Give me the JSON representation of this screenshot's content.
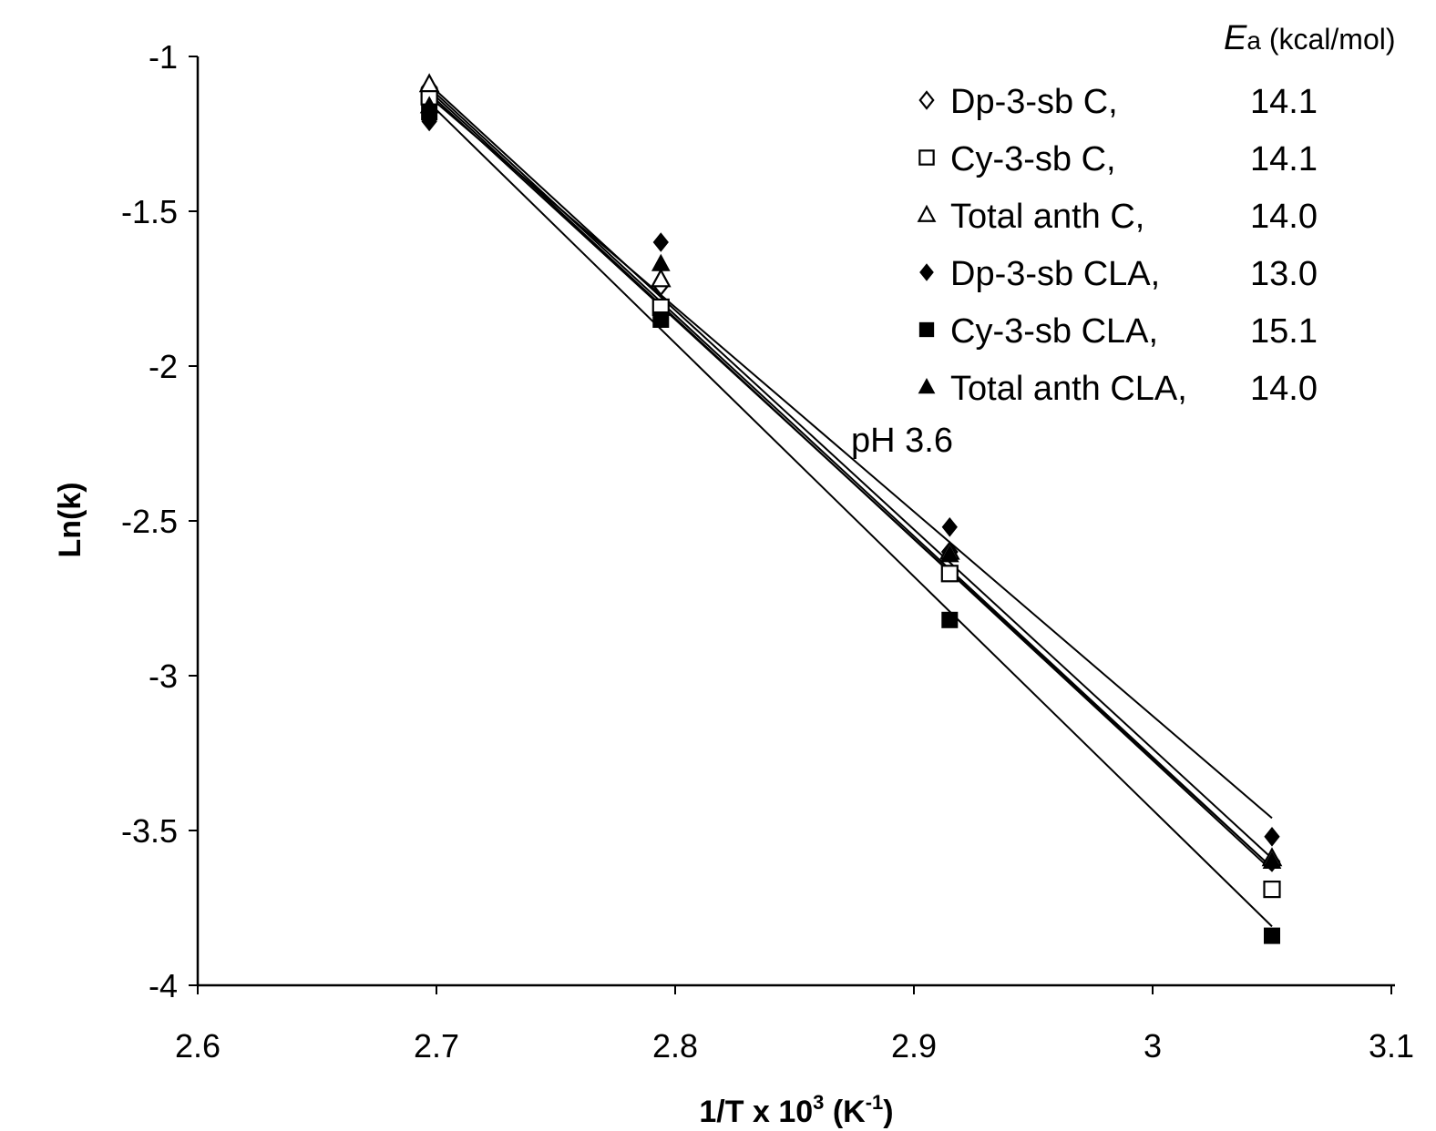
{
  "chart_data": {
    "type": "scatter",
    "title": "",
    "annotation": "pH 3.6",
    "xlabel": {
      "main": "1/T x 10",
      "sup": "3",
      "open": " (K",
      "sup2": "-1",
      "close": ")"
    },
    "ylabel": "Ln(k)",
    "xlim": [
      2.6,
      3.1
    ],
    "ylim": [
      -4,
      -1
    ],
    "xticks": [
      2.6,
      2.7,
      2.8,
      2.9,
      3.0,
      3.1
    ],
    "xtick_labels": [
      "2.6",
      "2.7",
      "2.8",
      "2.9",
      "3",
      "3.1"
    ],
    "yticks": [
      -1,
      -1.5,
      -2,
      -2.5,
      -3,
      -3.5,
      -4
    ],
    "ytick_labels": [
      "-1",
      "-1.5",
      "-2",
      "-2.5",
      "-3",
      "-3.5",
      "-4"
    ],
    "grid": false,
    "legend_placement": "top-right",
    "legend_header": {
      "symbol": "E",
      "sub": "a",
      "unit": " (kcal/mol)"
    },
    "series": [
      {
        "name": "Dp-3-sb C,",
        "ea": "14.1",
        "marker": "diamond-open",
        "x": [
          2.697,
          2.794,
          2.915,
          3.05
        ],
        "y": [
          -1.1,
          -1.74,
          -2.6,
          -3.6
        ],
        "fit": [
          [
            2.697,
            -1.1
          ],
          [
            3.05,
            -3.62
          ]
        ]
      },
      {
        "name": "Cy-3-sb C,",
        "ea": "14.1",
        "marker": "square-open",
        "x": [
          2.697,
          2.794,
          2.915,
          3.05
        ],
        "y": [
          -1.13,
          -1.81,
          -2.67,
          -3.69
        ],
        "fit": [
          [
            2.697,
            -1.11
          ],
          [
            3.05,
            -3.63
          ]
        ]
      },
      {
        "name": "Total anth C,",
        "ea": "14.0",
        "marker": "triangle-open",
        "x": [
          2.697,
          2.794,
          2.915,
          3.05
        ],
        "y": [
          -1.09,
          -1.72,
          -2.6,
          -3.59
        ],
        "fit": [
          [
            2.697,
            -1.09
          ],
          [
            3.05,
            -3.59
          ]
        ]
      },
      {
        "name": "Dp-3-sb CLA,",
        "ea": "13.0",
        "marker": "diamond-filled",
        "x": [
          2.697,
          2.794,
          2.915,
          3.05
        ],
        "y": [
          -1.21,
          -1.6,
          -2.52,
          -3.52
        ],
        "fit": [
          [
            2.697,
            -1.13
          ],
          [
            3.05,
            -3.46
          ]
        ]
      },
      {
        "name": "Cy-3-sb CLA,",
        "ea": "15.1",
        "marker": "square-filled",
        "x": [
          2.697,
          2.794,
          2.915,
          3.05
        ],
        "y": [
          -1.18,
          -1.85,
          -2.82,
          -3.84
        ],
        "fit": [
          [
            2.697,
            -1.15
          ],
          [
            3.05,
            -3.81
          ]
        ]
      },
      {
        "name": "Total anth CLA,",
        "ea": "14.0",
        "marker": "triangle-filled",
        "x": [
          2.697,
          2.794,
          2.915,
          3.05
        ],
        "y": [
          -1.16,
          -1.67,
          -2.61,
          -3.6
        ],
        "fit": [
          [
            2.697,
            -1.12
          ],
          [
            3.05,
            -3.62
          ]
        ]
      }
    ]
  }
}
